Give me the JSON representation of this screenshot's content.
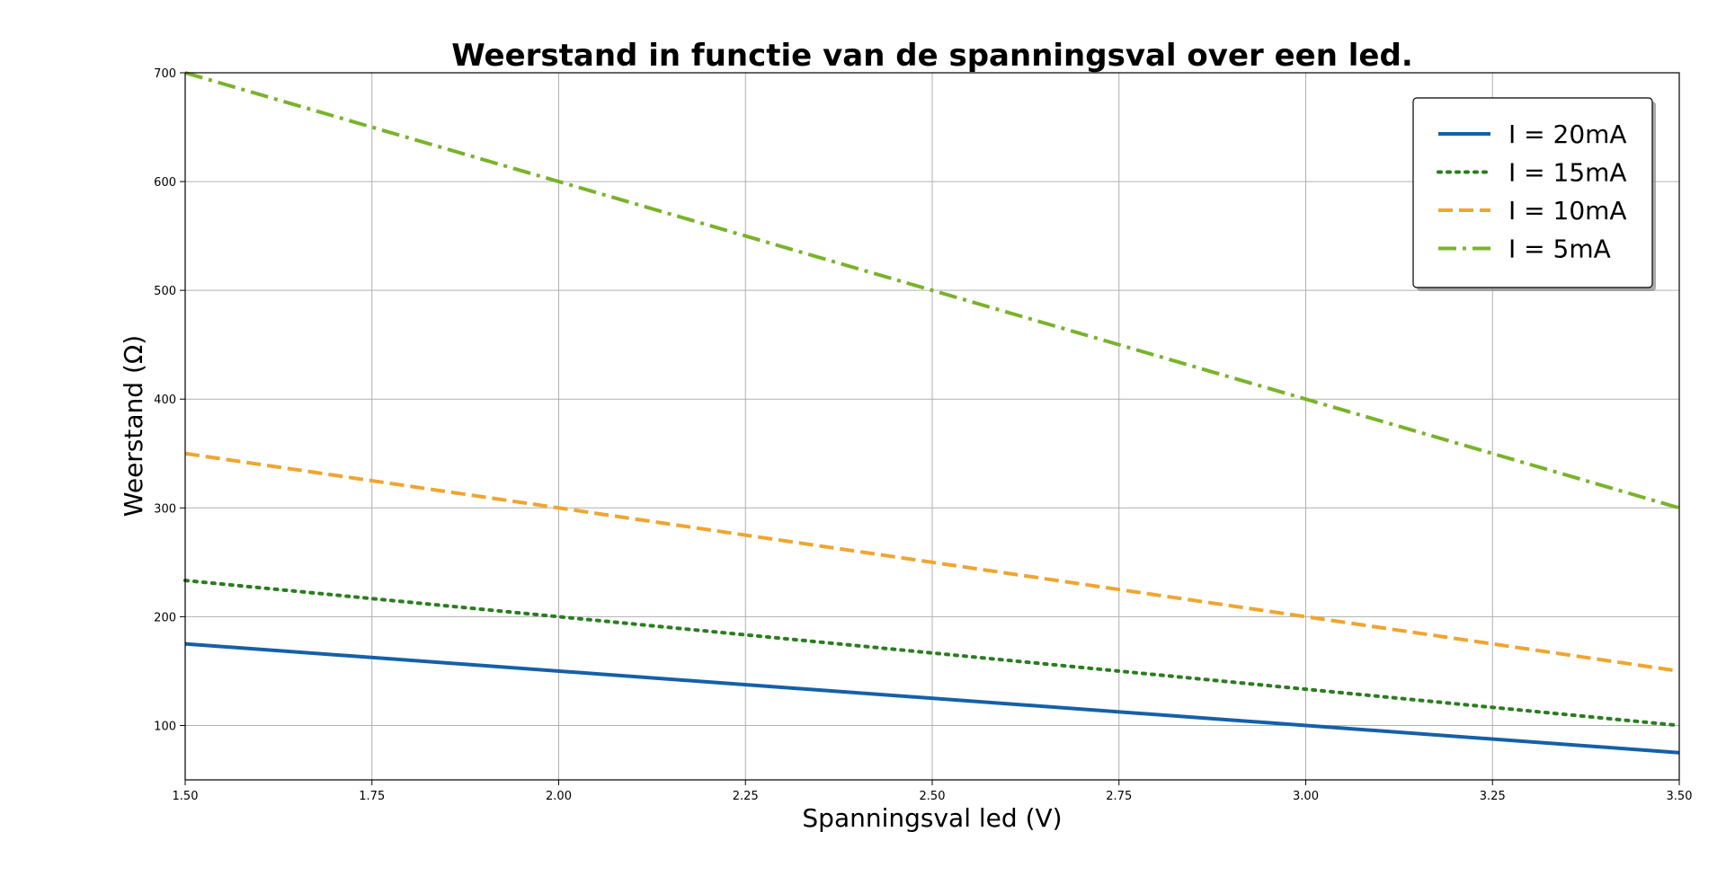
{
  "chart_data": {
    "type": "line",
    "title": "Weerstand in functie van de spanningsval over een led.",
    "xlabel": "Spanningsval led (V)",
    "ylabel": "Weerstand (Ω)",
    "xlim": [
      1.5,
      3.5
    ],
    "ylim": [
      50,
      700
    ],
    "x_ticks": [
      "1.50",
      "1.75",
      "2.00",
      "2.25",
      "2.50",
      "2.75",
      "3.00",
      "3.25",
      "3.50"
    ],
    "y_ticks": [
      "100",
      "200",
      "300",
      "400",
      "500",
      "600",
      "700"
    ],
    "x_tick_values": [
      1.5,
      1.75,
      2.0,
      2.25,
      2.5,
      2.75,
      3.0,
      3.25,
      3.5
    ],
    "y_tick_values": [
      100,
      200,
      300,
      400,
      500,
      600,
      700
    ],
    "grid": true,
    "legend_position": "top-right",
    "x": [
      1.5,
      3.5
    ],
    "series": [
      {
        "name": "I = 20mA",
        "values": [
          175,
          75
        ],
        "color": "#1560a8",
        "style": "solid"
      },
      {
        "name": "I = 15mA",
        "values": [
          233.3,
          100
        ],
        "color": "#2a7d1f",
        "style": "dotted"
      },
      {
        "name": "I = 10mA",
        "values": [
          350,
          150
        ],
        "color": "#f0a530",
        "style": "dashed"
      },
      {
        "name": "I = 5mA",
        "values": [
          700,
          300
        ],
        "color": "#79b32a",
        "style": "dashdot"
      }
    ]
  }
}
